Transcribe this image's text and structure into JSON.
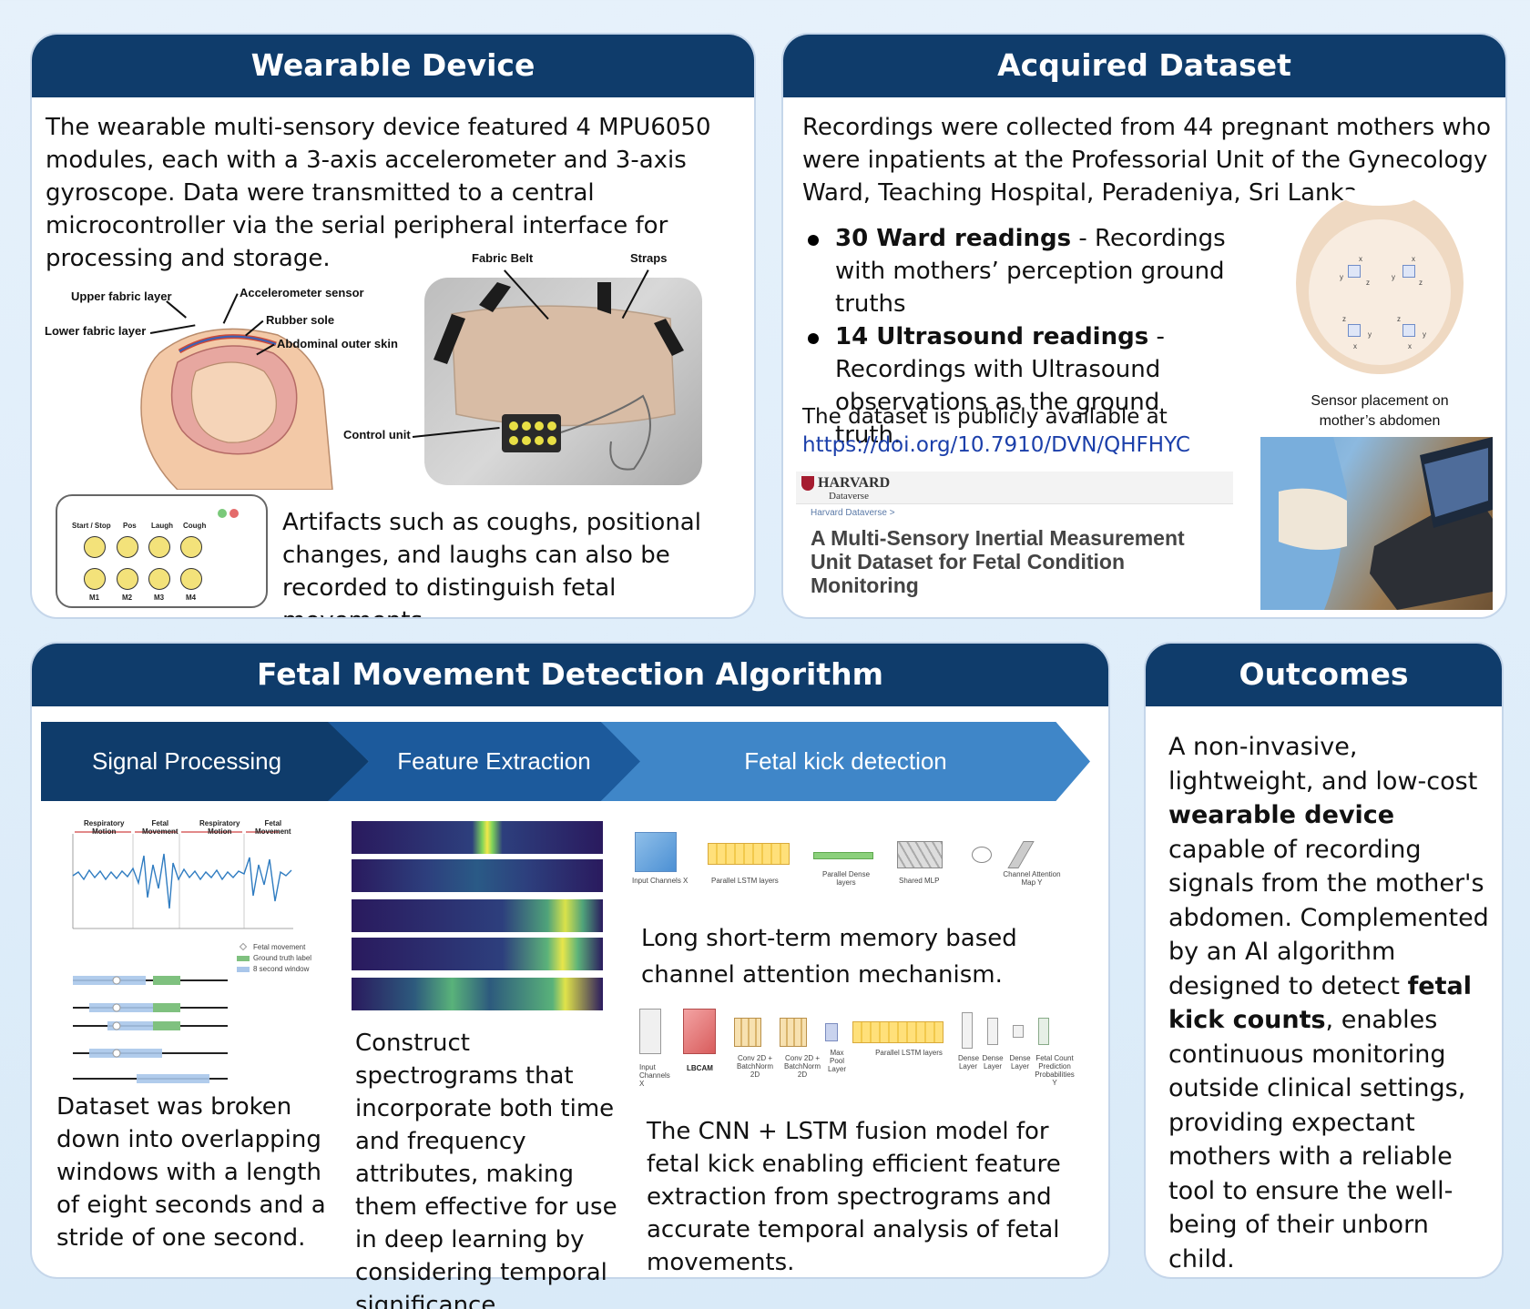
{
  "wearable": {
    "title": "Wearable Device",
    "intro": "The wearable multi-sensory device featured 4 MPU6050 modules, each with a 3-axis accelerometer and 3-axis gyroscope. Data were transmitted to a central microcontroller via the serial peripheral interface for processing and storage.",
    "labels": {
      "upper_fabric": "Upper fabric layer",
      "lower_fabric": "Lower fabric layer",
      "accelerometer": "Accelerometer sensor",
      "rubber": "Rubber sole",
      "abdominal": "Abdominal outer skin",
      "fabric_belt": "Fabric Belt",
      "straps": "Straps",
      "control_unit": "Control unit"
    },
    "panel_buttons": {
      "top": [
        "Start / Stop",
        "Pos",
        "Laugh",
        "Cough"
      ],
      "bottom": [
        "M1",
        "M2",
        "M3",
        "M4"
      ]
    },
    "artifacts_text": "Artifacts such as coughs, positional changes, and laughs can also be recorded to distinguish fetal movements."
  },
  "dataset": {
    "title": "Acquired Dataset",
    "intro": "Recordings were collected from 44 pregnant mothers who were inpatients at the Professorial Unit of the Gynecology Ward, Teaching Hospital, Peradeniya, Sri Lanka.",
    "bullets": [
      {
        "bold": "30 Ward readings",
        "rest": " - Recordings with mothers’ perception ground truths"
      },
      {
        "bold": "14 Ultrasound readings",
        "rest": " - Recordings with Ultrasound observations as the ground truth."
      }
    ],
    "availability": "The dataset  is publicly available at",
    "link": "https://doi.org/10.7910/DVN/QHFHYC",
    "harvard": "HARVARD",
    "dataverse": "Dataverse",
    "breadcrumb": "Harvard Dataverse >",
    "dataset_title": "A Multi-Sensory Inertial Measurement Unit Dataset for Fetal Condition Monitoring",
    "sensor_caption_1": "Sensor placement on",
    "sensor_caption_2": "mother’s abdomen",
    "axis_labels": [
      "x",
      "y",
      "z"
    ]
  },
  "algorithm": {
    "title": "Fetal Movement Detection Algorithm",
    "stages": [
      "Signal Processing",
      "Feature Extraction",
      "Fetal kick detection"
    ],
    "signal_labels": [
      [
        "Respiratory",
        "Motion"
      ],
      [
        "Fetal",
        "Movement"
      ],
      [
        "Respiratory",
        "Motion"
      ],
      [
        "Fetal",
        "Movement"
      ]
    ],
    "legend": [
      "Fetal movement",
      "Ground truth label",
      "8 second window"
    ],
    "signal_text": "Dataset was broken down into overlapping windows with a length of eight seconds and a stride of one second.",
    "spectro_text": "Construct spectrograms that incorporate both time and frequency attributes, making them effective for use in deep learning by considering temporal significance.",
    "lstm_blocks": [
      "Input Channels X",
      "Parallel LSTM layers",
      "Parallel Dense layers",
      "Shared MLP",
      "Channel Attention Map Y"
    ],
    "lstm_text": "Long short-term memory based channel attention mechanism.",
    "cnn_blocks": [
      "Input Channels X",
      "LBCAM",
      "Conv 2D + BatchNorm 2D",
      "Conv 2D + BatchNorm 2D",
      "Max Pool Layer",
      "Parallel LSTM layers",
      "Dense Layer",
      "Dense Layer",
      "Dense Layer",
      "Fetal Count Prediction Probabilities Y"
    ],
    "cnn_text": "The CNN + LSTM fusion model for fetal kick enabling efficient feature extraction from spectrograms and accurate temporal analysis of fetal movements."
  },
  "outcomes": {
    "title": "Outcomes",
    "parts": [
      {
        "t": "A non-invasive, lightweight, and low-cost ",
        "b": false
      },
      {
        "t": "wearable device",
        "b": true
      },
      {
        "t": " capable of recording signals from the mother's abdomen. Complemented by an AI algorithm designed to detect ",
        "b": false
      },
      {
        "t": "fetal kick counts",
        "b": true
      },
      {
        "t": ", enables continuous monitoring outside clinical settings, providing expectant mothers with a reliable tool to ensure the well-being of their unborn child.",
        "b": false
      }
    ]
  },
  "colors": {
    "header": "#0f3c6b",
    "arrow_dark": "#0f3c6b",
    "arrow_mid": "#1c5a9c",
    "arrow_light": "#3f86c8",
    "link": "#1b3faa"
  }
}
